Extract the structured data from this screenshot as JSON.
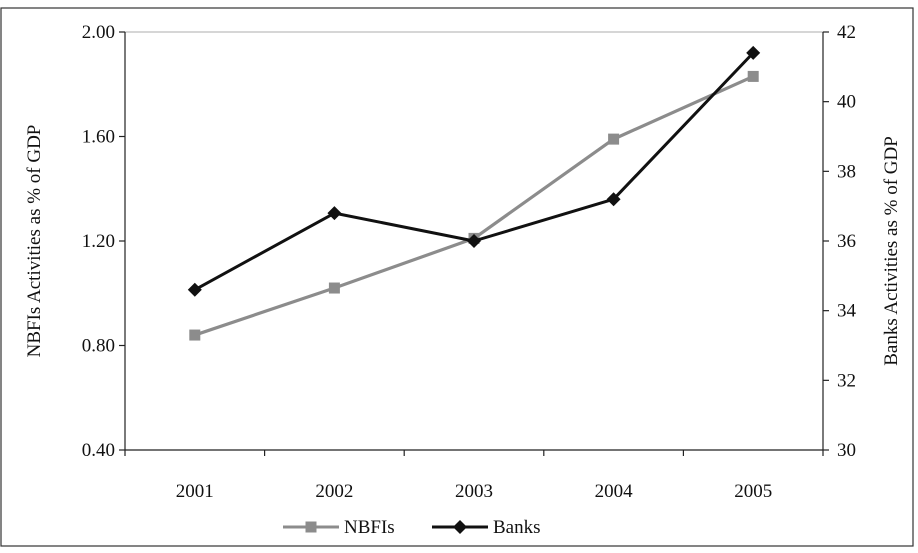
{
  "chart_data": {
    "type": "line",
    "categories": [
      "2001",
      "2002",
      "2003",
      "2004",
      "2005"
    ],
    "ylabel": "NBFIs Activities as % of GDP",
    "ylabel_right": "Banks Activities as % of GDP",
    "ylim": [
      0.4,
      2.0
    ],
    "ylim_right": [
      30,
      42
    ],
    "yticks": [
      "0.40",
      "0.80",
      "1.20",
      "1.60",
      "2.00"
    ],
    "yticks_right": [
      "30",
      "32",
      "34",
      "36",
      "38",
      "40",
      "42"
    ],
    "legend_position": "bottom",
    "grid": false,
    "series": [
      {
        "name": "NBFIs",
        "axis": "left",
        "color": "#8c8c8c",
        "marker": "square",
        "values": [
          0.84,
          1.02,
          1.21,
          1.59,
          1.83
        ]
      },
      {
        "name": "Banks",
        "axis": "right",
        "color": "#111111",
        "marker": "diamond",
        "values": [
          34.6,
          36.8,
          36.0,
          37.2,
          41.4
        ]
      }
    ]
  }
}
